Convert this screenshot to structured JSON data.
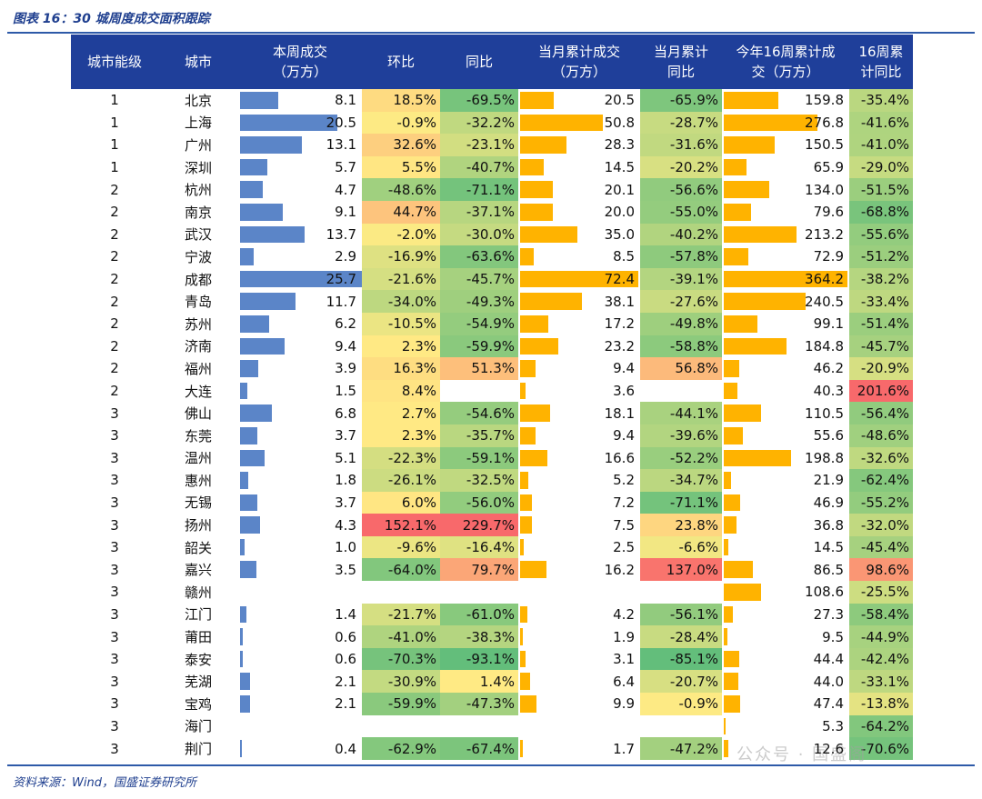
{
  "caption": "图表 16：30 城周度成交面积跟踪",
  "source": "资料来源：Wind，国盛证券研究所",
  "watermark": "公众号 · 国盛阁",
  "headers": [
    "城市能级",
    "城市",
    "本周成交\n（万方）",
    "环比",
    "同比",
    "当月累计成交\n（万方）",
    "当月累计\n同比",
    "今年16周累计成\n交（万方）",
    "16周累\n计同比"
  ],
  "colors": {
    "header_bg": "#1f3f9a",
    "bar_blue": "#5b85c8",
    "bar_orange": "#ffb300"
  },
  "rows": [
    {
      "tier": "1",
      "city": "北京",
      "week": 8.1,
      "hb": "18.5%",
      "tb": "-69.5%",
      "month": 20.5,
      "mtb": "-65.9%",
      "ytd": 159.8,
      "ytb": "-35.4%"
    },
    {
      "tier": "1",
      "city": "上海",
      "week": 20.5,
      "hb": "-0.9%",
      "tb": "-32.2%",
      "month": 50.8,
      "mtb": "-28.7%",
      "ytd": 276.8,
      "ytb": "-41.6%"
    },
    {
      "tier": "1",
      "city": "广州",
      "week": 13.1,
      "hb": "32.6%",
      "tb": "-23.1%",
      "month": 28.3,
      "mtb": "-31.6%",
      "ytd": 150.5,
      "ytb": "-41.0%"
    },
    {
      "tier": "1",
      "city": "深圳",
      "week": 5.7,
      "hb": "5.5%",
      "tb": "-40.7%",
      "month": 14.5,
      "mtb": "-20.2%",
      "ytd": 65.9,
      "ytb": "-29.0%"
    },
    {
      "tier": "2",
      "city": "杭州",
      "week": 4.7,
      "hb": "-48.6%",
      "tb": "-71.1%",
      "month": 20.1,
      "mtb": "-56.6%",
      "ytd": 134.0,
      "ytb": "-51.5%"
    },
    {
      "tier": "2",
      "city": "南京",
      "week": 9.1,
      "hb": "44.7%",
      "tb": "-37.1%",
      "month": 20.0,
      "mtb": "-55.0%",
      "ytd": 79.6,
      "ytb": "-68.8%"
    },
    {
      "tier": "2",
      "city": "武汉",
      "week": 13.7,
      "hb": "-2.0%",
      "tb": "-30.0%",
      "month": 35.0,
      "mtb": "-40.2%",
      "ytd": 213.2,
      "ytb": "-55.6%"
    },
    {
      "tier": "2",
      "city": "宁波",
      "week": 2.9,
      "hb": "-16.9%",
      "tb": "-63.6%",
      "month": 8.5,
      "mtb": "-57.8%",
      "ytd": 72.9,
      "ytb": "-51.2%"
    },
    {
      "tier": "2",
      "city": "成都",
      "week": 25.7,
      "hb": "-21.6%",
      "tb": "-45.7%",
      "month": 72.4,
      "mtb": "-39.1%",
      "ytd": 364.2,
      "ytb": "-38.2%"
    },
    {
      "tier": "2",
      "city": "青岛",
      "week": 11.7,
      "hb": "-34.0%",
      "tb": "-49.3%",
      "month": 38.1,
      "mtb": "-27.6%",
      "ytd": 240.5,
      "ytb": "-33.4%"
    },
    {
      "tier": "2",
      "city": "苏州",
      "week": 6.2,
      "hb": "-10.5%",
      "tb": "-54.9%",
      "month": 17.2,
      "mtb": "-49.8%",
      "ytd": 99.1,
      "ytb": "-51.4%"
    },
    {
      "tier": "2",
      "city": "济南",
      "week": 9.4,
      "hb": "2.3%",
      "tb": "-59.9%",
      "month": 23.2,
      "mtb": "-58.8%",
      "ytd": 184.8,
      "ytb": "-45.7%"
    },
    {
      "tier": "2",
      "city": "福州",
      "week": 3.9,
      "hb": "16.3%",
      "tb": "51.3%",
      "month": 9.4,
      "mtb": "56.8%",
      "ytd": 46.2,
      "ytb": "-20.9%"
    },
    {
      "tier": "2",
      "city": "大连",
      "week": 1.5,
      "hb": "8.4%",
      "tb": "",
      "month": 3.6,
      "mtb": "",
      "ytd": 40.3,
      "ytb": "201.6%"
    },
    {
      "tier": "3",
      "city": "佛山",
      "week": 6.8,
      "hb": "2.7%",
      "tb": "-54.6%",
      "month": 18.1,
      "mtb": "-44.1%",
      "ytd": 110.5,
      "ytb": "-56.4%"
    },
    {
      "tier": "3",
      "city": "东莞",
      "week": 3.7,
      "hb": "2.3%",
      "tb": "-35.7%",
      "month": 9.4,
      "mtb": "-39.6%",
      "ytd": 55.6,
      "ytb": "-48.6%"
    },
    {
      "tier": "3",
      "city": "温州",
      "week": 5.1,
      "hb": "-22.3%",
      "tb": "-59.1%",
      "month": 16.6,
      "mtb": "-52.2%",
      "ytd": 198.8,
      "ytb": "-32.6%"
    },
    {
      "tier": "3",
      "city": "惠州",
      "week": 1.8,
      "hb": "-26.1%",
      "tb": "-32.5%",
      "month": 5.2,
      "mtb": "-34.7%",
      "ytd": 21.9,
      "ytb": "-62.4%"
    },
    {
      "tier": "3",
      "city": "无锡",
      "week": 3.7,
      "hb": "6.0%",
      "tb": "-56.0%",
      "month": 7.2,
      "mtb": "-71.1%",
      "ytd": 46.9,
      "ytb": "-55.2%"
    },
    {
      "tier": "3",
      "city": "扬州",
      "week": 4.3,
      "hb": "152.1%",
      "tb": "229.7%",
      "month": 7.5,
      "mtb": "23.8%",
      "ytd": 36.8,
      "ytb": "-32.0%"
    },
    {
      "tier": "3",
      "city": "韶关",
      "week": 1.0,
      "hb": "-9.6%",
      "tb": "-16.4%",
      "month": 2.5,
      "mtb": "-6.6%",
      "ytd": 14.5,
      "ytb": "-45.4%"
    },
    {
      "tier": "3",
      "city": "嘉兴",
      "week": 3.5,
      "hb": "-64.0%",
      "tb": "79.7%",
      "month": 16.2,
      "mtb": "137.0%",
      "ytd": 86.5,
      "ytb": "98.6%"
    },
    {
      "tier": "3",
      "city": "赣州",
      "week": null,
      "hb": "",
      "tb": "",
      "month": null,
      "mtb": "",
      "ytd": 108.6,
      "ytb": "-25.5%"
    },
    {
      "tier": "3",
      "city": "江门",
      "week": 1.4,
      "hb": "-21.7%",
      "tb": "-61.0%",
      "month": 4.2,
      "mtb": "-56.1%",
      "ytd": 27.3,
      "ytb": "-58.4%"
    },
    {
      "tier": "3",
      "city": "莆田",
      "week": 0.6,
      "hb": "-41.0%",
      "tb": "-38.3%",
      "month": 1.9,
      "mtb": "-28.4%",
      "ytd": 9.5,
      "ytb": "-44.9%"
    },
    {
      "tier": "3",
      "city": "泰安",
      "week": 0.6,
      "hb": "-70.3%",
      "tb": "-93.1%",
      "month": 3.1,
      "mtb": "-85.1%",
      "ytd": 44.4,
      "ytb": "-42.4%"
    },
    {
      "tier": "3",
      "city": "芜湖",
      "week": 2.1,
      "hb": "-30.9%",
      "tb": "1.4%",
      "month": 6.4,
      "mtb": "-20.7%",
      "ytd": 44.0,
      "ytb": "-33.1%"
    },
    {
      "tier": "3",
      "city": "宝鸡",
      "week": 2.1,
      "hb": "-59.9%",
      "tb": "-47.3%",
      "month": 9.9,
      "mtb": "-0.9%",
      "ytd": 47.4,
      "ytb": "-13.8%"
    },
    {
      "tier": "3",
      "city": "海门",
      "week": null,
      "hb": "",
      "tb": "",
      "month": null,
      "mtb": "",
      "ytd": 5.3,
      "ytb": "-64.2%"
    },
    {
      "tier": "3",
      "city": "荆门",
      "week": 0.4,
      "hb": "-62.9%",
      "tb": "-67.4%",
      "month": 1.7,
      "mtb": "-47.2%",
      "ytd": 12.6,
      "ytb": "-70.6%"
    }
  ]
}
